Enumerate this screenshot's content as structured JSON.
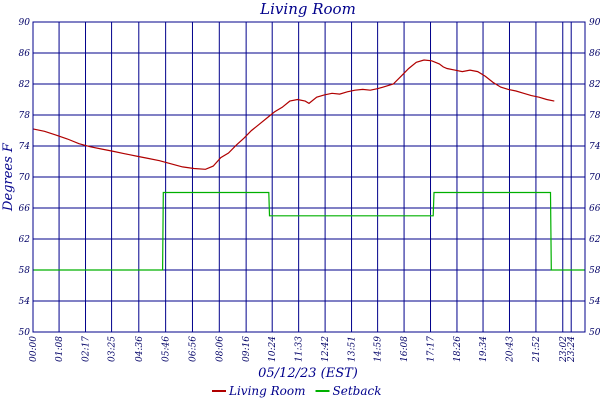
{
  "chart_data": {
    "type": "line",
    "title": "Living Room",
    "xlabel": "05/12/23 (EST)",
    "ylabel": "Degrees F",
    "ylim": [
      50,
      90
    ],
    "yticks": [
      50,
      54,
      58,
      62,
      66,
      70,
      74,
      78,
      82,
      86,
      90
    ],
    "xlim": [
      0,
      1440
    ],
    "xticks": [
      {
        "t": 0,
        "label": "00:00"
      },
      {
        "t": 68,
        "label": "01:08"
      },
      {
        "t": 137,
        "label": "02:17"
      },
      {
        "t": 205,
        "label": "03:25"
      },
      {
        "t": 276,
        "label": "04:36"
      },
      {
        "t": 346,
        "label": "05:46"
      },
      {
        "t": 416,
        "label": "06:56"
      },
      {
        "t": 486,
        "label": "08:06"
      },
      {
        "t": 556,
        "label": "09:16"
      },
      {
        "t": 624,
        "label": "10:24"
      },
      {
        "t": 693,
        "label": "11:33"
      },
      {
        "t": 762,
        "label": "12:42"
      },
      {
        "t": 831,
        "label": "13:51"
      },
      {
        "t": 899,
        "label": "14:59"
      },
      {
        "t": 968,
        "label": "16:08"
      },
      {
        "t": 1037,
        "label": "17:17"
      },
      {
        "t": 1106,
        "label": "18:26"
      },
      {
        "t": 1174,
        "label": "19:34"
      },
      {
        "t": 1243,
        "label": "20:43"
      },
      {
        "t": 1312,
        "label": "21:52"
      },
      {
        "t": 1382,
        "label": "23:02"
      },
      {
        "t": 1404,
        "label": "23:24"
      }
    ],
    "grid": true,
    "legend_position": "bottom",
    "series": [
      {
        "name": "Living Room",
        "color": "#b00000",
        "points": [
          [
            0,
            76.2
          ],
          [
            30,
            75.9
          ],
          [
            60,
            75.4
          ],
          [
            90,
            74.9
          ],
          [
            120,
            74.3
          ],
          [
            150,
            73.9
          ],
          [
            180,
            73.6
          ],
          [
            210,
            73.3
          ],
          [
            240,
            73.0
          ],
          [
            270,
            72.7
          ],
          [
            300,
            72.4
          ],
          [
            330,
            72.1
          ],
          [
            360,
            71.7
          ],
          [
            390,
            71.3
          ],
          [
            420,
            71.1
          ],
          [
            450,
            71.0
          ],
          [
            470,
            71.4
          ],
          [
            490,
            72.5
          ],
          [
            510,
            73.1
          ],
          [
            530,
            74.1
          ],
          [
            550,
            75.0
          ],
          [
            570,
            76.0
          ],
          [
            590,
            76.8
          ],
          [
            610,
            77.6
          ],
          [
            630,
            78.4
          ],
          [
            650,
            79.0
          ],
          [
            670,
            79.8
          ],
          [
            690,
            80.0
          ],
          [
            710,
            79.8
          ],
          [
            720,
            79.5
          ],
          [
            740,
            80.3
          ],
          [
            760,
            80.6
          ],
          [
            780,
            80.8
          ],
          [
            800,
            80.7
          ],
          [
            820,
            81.0
          ],
          [
            840,
            81.2
          ],
          [
            860,
            81.3
          ],
          [
            880,
            81.2
          ],
          [
            900,
            81.4
          ],
          [
            920,
            81.7
          ],
          [
            940,
            82.0
          ],
          [
            960,
            83.0
          ],
          [
            980,
            84.0
          ],
          [
            1000,
            84.8
          ],
          [
            1020,
            85.1
          ],
          [
            1040,
            85.0
          ],
          [
            1060,
            84.6
          ],
          [
            1070,
            84.2
          ],
          [
            1080,
            84.0
          ],
          [
            1100,
            83.8
          ],
          [
            1120,
            83.6
          ],
          [
            1140,
            83.8
          ],
          [
            1160,
            83.6
          ],
          [
            1180,
            83.0
          ],
          [
            1200,
            82.2
          ],
          [
            1220,
            81.6
          ],
          [
            1240,
            81.3
          ],
          [
            1260,
            81.1
          ],
          [
            1280,
            80.8
          ],
          [
            1300,
            80.5
          ],
          [
            1320,
            80.3
          ],
          [
            1340,
            80.0
          ],
          [
            1360,
            79.8
          ]
        ]
      },
      {
        "name": "Setback",
        "color": "#00b000",
        "points": [
          [
            0,
            58
          ],
          [
            338,
            58
          ],
          [
            340,
            68
          ],
          [
            615,
            68
          ],
          [
            617,
            65
          ],
          [
            1044,
            65
          ],
          [
            1046,
            68
          ],
          [
            1350,
            68
          ],
          [
            1352,
            58
          ],
          [
            1440,
            58
          ]
        ]
      }
    ]
  }
}
